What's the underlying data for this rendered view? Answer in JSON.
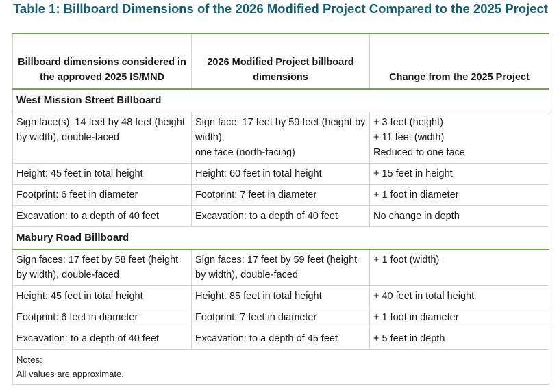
{
  "title": "Table 1: Billboard Dimensions of the 2026 Modified Project Compared to the 2025 Project",
  "headers": [
    "Billboard dimensions considered in the approved 2025 IS/MND",
    "2026 Modified Project billboard dimensions",
    "Change from the 2025 Project"
  ],
  "sections": [
    {
      "name": "West Mission Street Billboard",
      "rows": [
        {
          "approved": "Sign face(s): 14 feet by 48 feet (height by width), double-faced",
          "modified": [
            "Sign face: 17 feet by 59 feet (height by width),",
            "one face (north-facing)"
          ],
          "change": [
            "+ 3 feet (height)",
            "+ 11 feet (width)",
            "Reduced to one face"
          ]
        },
        {
          "approved": "Height: 45 feet in total height",
          "modified": [
            "Height: 60 feet in total height"
          ],
          "change": [
            "+ 15 feet in height"
          ]
        },
        {
          "approved": "Footprint: 6 feet in diameter",
          "modified": [
            "Footprint: 7 feet in diameter"
          ],
          "change": [
            "+ 1 foot in diameter"
          ]
        },
        {
          "approved": "Excavation: to a depth of 40 feet",
          "modified": [
            "Excavation: to a depth of 40 feet"
          ],
          "change": [
            "No change in depth"
          ]
        }
      ]
    },
    {
      "name": "Mabury Road Billboard",
      "rows": [
        {
          "approved": "Sign faces: 17 feet by 58 feet (height by width), double-faced",
          "modified": [
            "Sign faces: 17 feet by 59 feet (height by width), double-faced"
          ],
          "change": [
            "+ 1 foot (width)"
          ]
        },
        {
          "approved": "Height: 45 feet in total height",
          "modified": [
            "Height: 85 feet in total height"
          ],
          "change": [
            "+ 40 feet in total height"
          ]
        },
        {
          "approved": "Footprint: 6 feet in diameter",
          "modified": [
            "Footprint: 7 feet in diameter"
          ],
          "change": [
            "+ 1 foot in diameter"
          ]
        },
        {
          "approved": "Excavation: to a depth of 40 feet",
          "modified": [
            "Excavation: to a depth of 45 feet"
          ],
          "change": [
            "+ 5 feet in depth"
          ]
        }
      ]
    }
  ],
  "notes": {
    "label": "Notes:",
    "text": "All values are approximate."
  }
}
